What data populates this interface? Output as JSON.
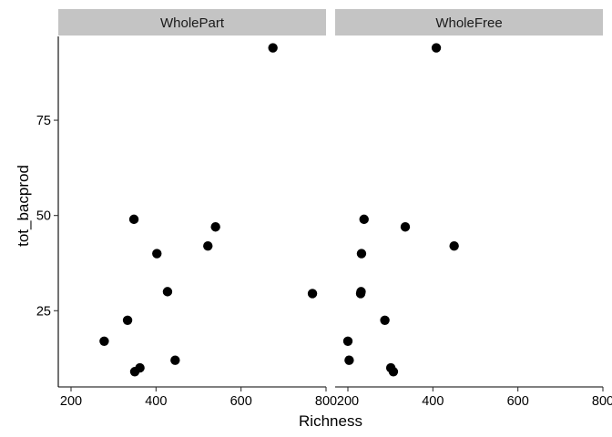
{
  "chart_data": {
    "type": "scatter",
    "xlabel": "Richness",
    "ylabel": "tot_bacprod",
    "xlim": [
      170,
      800
    ],
    "ylim": [
      5,
      97
    ],
    "xticks": [
      200,
      400,
      600,
      800
    ],
    "yticks": [
      25,
      50,
      75
    ],
    "grid": false,
    "panels": [
      {
        "name": "WholePart",
        "points": [
          {
            "x": 675,
            "y": 94
          },
          {
            "x": 348,
            "y": 49
          },
          {
            "x": 540,
            "y": 47
          },
          {
            "x": 522,
            "y": 42
          },
          {
            "x": 402,
            "y": 40
          },
          {
            "x": 427,
            "y": 30
          },
          {
            "x": 768,
            "y": 29.5
          },
          {
            "x": 333,
            "y": 22.5
          },
          {
            "x": 278,
            "y": 17
          },
          {
            "x": 445,
            "y": 12
          },
          {
            "x": 362,
            "y": 10
          },
          {
            "x": 350,
            "y": 9
          }
        ]
      },
      {
        "name": "WholeFree",
        "points": [
          {
            "x": 408,
            "y": 94
          },
          {
            "x": 238,
            "y": 49
          },
          {
            "x": 335,
            "y": 47
          },
          {
            "x": 450,
            "y": 42
          },
          {
            "x": 232,
            "y": 40
          },
          {
            "x": 231,
            "y": 30
          },
          {
            "x": 230,
            "y": 29.5
          },
          {
            "x": 287,
            "y": 22.5
          },
          {
            "x": 200,
            "y": 17
          },
          {
            "x": 203,
            "y": 12
          },
          {
            "x": 301,
            "y": 10
          },
          {
            "x": 307,
            "y": 9
          }
        ]
      }
    ]
  }
}
